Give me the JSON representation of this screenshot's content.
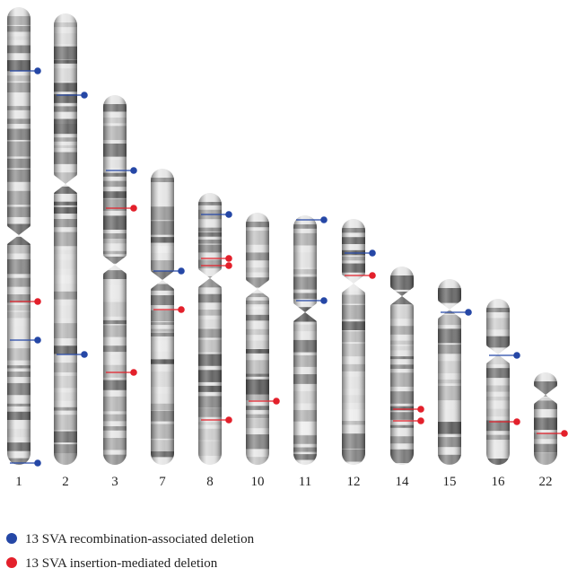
{
  "chromosomes": [
    {
      "label": "1"
    },
    {
      "label": "2"
    },
    {
      "label": "3"
    },
    {
      "label": "7"
    },
    {
      "label": "8"
    },
    {
      "label": "10"
    },
    {
      "label": "11"
    },
    {
      "label": "12"
    },
    {
      "label": "14"
    },
    {
      "label": "15"
    },
    {
      "label": "16"
    },
    {
      "label": "22"
    }
  ],
  "legend": [
    {
      "label": "13 SVA recombination-associated deletion"
    },
    {
      "label": "13 SVA insertion-mediated deletion"
    }
  ]
}
